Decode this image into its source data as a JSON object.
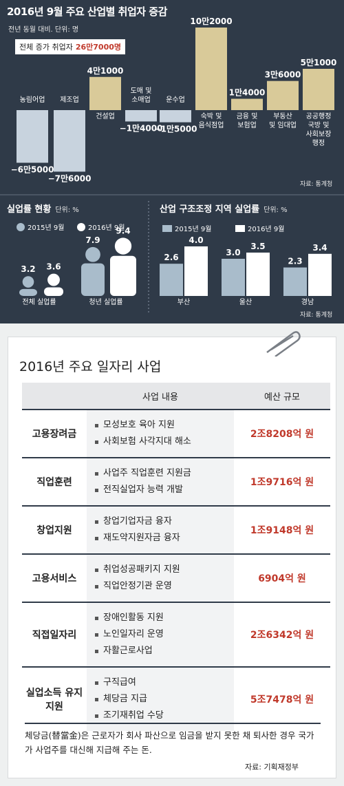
{
  "top_chart": {
    "title": "2016년 9월 주요 산업별 취업자 증감",
    "subtitle": "전년 동월 대비. 단위: 명",
    "total_label": "전체 증가 취업자",
    "total_value": "26만7000명",
    "source": "자료: 통계청"
  },
  "unemp": {
    "title": "실업률 현황",
    "unit": "단위: %",
    "legend": [
      "2015년 9월",
      "2016년 9월"
    ]
  },
  "restr": {
    "title": "산업 구조조정 지역 실업률",
    "unit": "단위: %",
    "legend": [
      "2015년 9월",
      "2016년 9월"
    ],
    "source": "자료: 통계청"
  },
  "chart_data": [
    {
      "type": "bar",
      "title": "2016년 9월 주요 산업별 취업자 증감",
      "categories": [
        "농림어업",
        "제조업",
        "건설업",
        "도매 및 소매업",
        "운수업",
        "숙박 및 음식점업",
        "금융 및 보험업",
        "부동산 및 임대업",
        "공공행정 국방 및 사회보장 행정"
      ],
      "values": [
        -65000,
        -76000,
        41000,
        -14000,
        -15000,
        102000,
        14000,
        36000,
        51000
      ],
      "value_labels": [
        "−6만5000",
        "−7만6000",
        "4만1000",
        "−1만4000",
        "−1만5000",
        "10만2000",
        "1만4000",
        "3만6000",
        "5만1000"
      ],
      "ylabel": "명"
    },
    {
      "type": "bar",
      "title": "실업률 현황",
      "categories": [
        "전체 실업률",
        "청년 실업률"
      ],
      "series": [
        {
          "name": "2015년 9월",
          "values": [
            3.2,
            7.9
          ]
        },
        {
          "name": "2016년 9월",
          "values": [
            3.6,
            9.4
          ]
        }
      ],
      "value_labels": [
        [
          "3.2",
          "7.9"
        ],
        [
          "3.6",
          "9.4"
        ]
      ],
      "ylabel": "%"
    },
    {
      "type": "bar",
      "title": "산업 구조조정 지역 실업률",
      "categories": [
        "부산",
        "울산",
        "경남"
      ],
      "series": [
        {
          "name": "2015년 9월",
          "values": [
            2.6,
            3.0,
            2.3
          ]
        },
        {
          "name": "2016년 9월",
          "values": [
            4.0,
            3.5,
            3.4
          ]
        }
      ],
      "value_labels": [
        [
          "2.6",
          "3.0",
          "2.3"
        ],
        [
          "4.0",
          "3.5",
          "3.4"
        ]
      ],
      "ylabel": "%"
    }
  ],
  "table": {
    "title": "2016년 주요 일자리 사업",
    "headers": [
      "",
      "사업 내용",
      "예산 규모"
    ],
    "rows": [
      {
        "cat": "고용장려금",
        "items": [
          "모성보호 육아 지원",
          "사회보험 사각지대 해소"
        ],
        "budget": "2조8208억 원"
      },
      {
        "cat": "직업훈련",
        "items": [
          "사업주 직업훈련 지원금",
          "전직실업자 능력 개발"
        ],
        "budget": "1조9716억 원"
      },
      {
        "cat": "창업지원",
        "items": [
          "창업기업자금 융자",
          "재도약지원자금 융자"
        ],
        "budget": "1조9148억 원"
      },
      {
        "cat": "고용서비스",
        "items": [
          "취업성공패키지 지원",
          "직업안정기관 운영"
        ],
        "budget": "6904억 원"
      },
      {
        "cat": "직접일자리",
        "items": [
          "장애인활동 지원",
          "노인일자리 운영",
          "자활근로사업"
        ],
        "budget": "2조6342억 원"
      },
      {
        "cat": "실업소득 유지 지원",
        "items": [
          "구직급여",
          "체당금 지급",
          "조기재취업 수당"
        ],
        "budget": "5조7478억 원"
      }
    ],
    "note": "체당금(替當金)은 근로자가 회사 파산으로 임금을 받지 못한 채 퇴사한 경우 국가가 사업주를 대신해 지급해 주는 돈.",
    "source": "자료: 기획재정부"
  },
  "colors": {
    "background": "#2f3a48",
    "positive_bar": "#d9ca99",
    "negative_bar": "#c8d3de",
    "bar_2015": "#a9bccb",
    "bar_2016": "#ffffff",
    "budget_red": "#c0392b"
  }
}
